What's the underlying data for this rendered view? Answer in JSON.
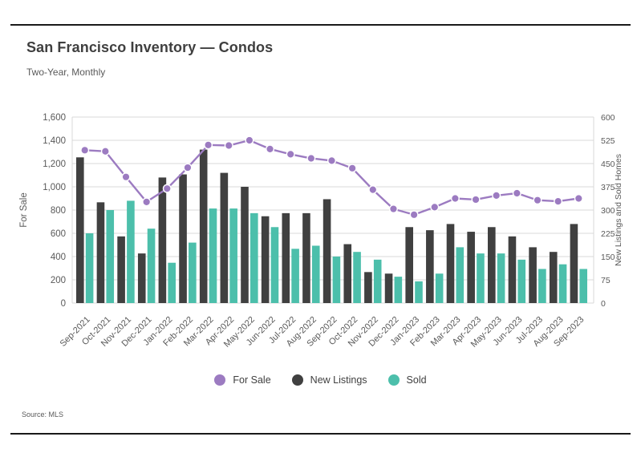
{
  "header": {
    "title": "San Francisco Inventory — Condos",
    "subtitle": "Two-Year, Monthly"
  },
  "footer": {
    "source": "Source: MLS"
  },
  "colors": {
    "for_sale_purple": "#9c7bc1",
    "new_listings_dark": "#404040",
    "sold_teal": "#4cbfab",
    "gridline": "#d9d9d9",
    "axis_text": "#595959",
    "title_text": "#3f3f3f",
    "rule_black": "#1a1a1a"
  },
  "legend": [
    {
      "label": "For Sale",
      "color": "#9c7bc1"
    },
    {
      "label": "New Listings",
      "color": "#404040"
    },
    {
      "label": "Sold",
      "color": "#4cbfab"
    }
  ],
  "chart_data": {
    "type": "bar",
    "subtype": "combo-line-and-bars",
    "categories": [
      "Sep-2021",
      "Oct-2021",
      "Nov-2021",
      "Dec-2021",
      "Jan-2022",
      "Feb-2022",
      "Mar-2022",
      "Apr-2022",
      "May-2022",
      "Jun-2022",
      "Jul-2022",
      "Aug-2022",
      "Sep-2022",
      "Oct-2022",
      "Nov-2022",
      "Dec-2022",
      "Jan-2023",
      "Feb-2023",
      "Mar-2023",
      "Apr-2023",
      "May-2023",
      "Jun-2023",
      "Jul-2023",
      "Aug-2023",
      "Sep-2023"
    ],
    "series": [
      {
        "name": "For Sale",
        "render": "line",
        "axis": "left",
        "color": "#9c7bc1",
        "values": [
          1315,
          1305,
          1085,
          870,
          985,
          1165,
          1360,
          1355,
          1400,
          1325,
          1280,
          1245,
          1225,
          1160,
          975,
          810,
          760,
          825,
          900,
          890,
          925,
          945,
          885,
          875,
          900
        ]
      },
      {
        "name": "New Listings",
        "render": "bar",
        "axis": "right",
        "color": "#404040",
        "values": [
          470,
          325,
          215,
          160,
          405,
          415,
          495,
          420,
          375,
          280,
          290,
          290,
          335,
          190,
          100,
          95,
          245,
          235,
          255,
          230,
          245,
          215,
          180,
          165,
          255
        ]
      },
      {
        "name": "Sold",
        "render": "bar",
        "axis": "right",
        "color": "#4cbfab",
        "values": [
          225,
          300,
          330,
          240,
          130,
          195,
          305,
          305,
          290,
          245,
          175,
          185,
          150,
          165,
          140,
          85,
          70,
          95,
          180,
          160,
          160,
          140,
          110,
          125,
          110
        ]
      }
    ],
    "left_axis": {
      "label": "For Sale",
      "min": 0,
      "max": 1600,
      "step": 200,
      "tick_labels": [
        "1,600",
        "1,400",
        "1,200",
        "1,000",
        "800",
        "600",
        "400",
        "200",
        "0"
      ]
    },
    "right_axis": {
      "label": "New Listings and Sold Homes",
      "min": 0,
      "max": 600,
      "step": 75,
      "tick_labels": [
        "600",
        "525",
        "450",
        "375",
        "300",
        "225",
        "150",
        "75",
        "0"
      ]
    },
    "grid": true,
    "legend_position": "bottom",
    "title": "San Francisco Inventory — Condos",
    "subtitle": "Two-Year, Monthly"
  }
}
